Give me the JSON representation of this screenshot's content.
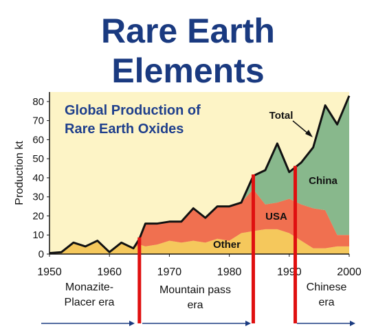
{
  "headline": [
    "Rare Earth",
    "Elements"
  ],
  "chart_data": {
    "type": "area",
    "title": "Global Production of Rare Earth Oxides",
    "title_lines": [
      "Global Production of",
      "Rare Earth Oxides"
    ],
    "ylabel": "Production kt",
    "xlabel": "",
    "xlim": [
      1950,
      2000
    ],
    "ylim": [
      0,
      85
    ],
    "xticks": [
      1950,
      1960,
      1970,
      1980,
      1990,
      2000
    ],
    "yticks": [
      0,
      10,
      20,
      30,
      40,
      50,
      60,
      70,
      80
    ],
    "grid": false,
    "stacked": true,
    "series": [
      {
        "name": "Other",
        "color": "#f5c85c",
        "x": [
          1950,
          1952,
          1954,
          1956,
          1958,
          1960,
          1962,
          1964,
          1965,
          1966,
          1968,
          1970,
          1972,
          1974,
          1976,
          1978,
          1980,
          1982,
          1984,
          1986,
          1988,
          1990,
          1992,
          1994,
          1996,
          1998,
          2000
        ],
        "values": [
          0.5,
          1,
          6,
          4,
          7,
          1,
          6,
          3,
          5,
          4,
          5,
          7,
          6,
          7,
          6,
          8,
          7,
          11,
          12,
          13,
          13,
          11,
          7,
          3,
          3,
          4,
          4
        ]
      },
      {
        "name": "USA",
        "color": "#f07050",
        "x": [
          1950,
          1952,
          1954,
          1956,
          1958,
          1960,
          1962,
          1964,
          1965,
          1966,
          1968,
          1970,
          1972,
          1974,
          1976,
          1978,
          1980,
          1982,
          1984,
          1986,
          1988,
          1990,
          1992,
          1994,
          1996,
          1998,
          2000
        ],
        "values": [
          0,
          0,
          0,
          0,
          0,
          0,
          0,
          0,
          3,
          12,
          11,
          10,
          11,
          17,
          13,
          17,
          18,
          16,
          22,
          13,
          14,
          18,
          19,
          21,
          20,
          6,
          6
        ]
      },
      {
        "name": "China",
        "color": "#88b88c",
        "x": [
          1950,
          1952,
          1954,
          1956,
          1958,
          1960,
          1962,
          1964,
          1965,
          1966,
          1968,
          1970,
          1972,
          1974,
          1976,
          1978,
          1980,
          1982,
          1984,
          1986,
          1988,
          1990,
          1992,
          1994,
          1996,
          1998,
          2000
        ],
        "values": [
          0,
          0,
          0,
          0,
          0,
          0,
          0,
          0,
          0,
          0,
          0,
          0,
          0,
          0,
          0,
          0,
          0,
          0,
          7,
          18,
          31,
          14,
          22,
          32,
          55,
          58,
          73
        ]
      }
    ],
    "total": {
      "name": "Total",
      "x": [
        1950,
        1952,
        1954,
        1956,
        1958,
        1960,
        1962,
        1964,
        1965,
        1966,
        1968,
        1970,
        1972,
        1974,
        1976,
        1978,
        1980,
        1982,
        1984,
        1986,
        1988,
        1990,
        1992,
        1994,
        1996,
        1998,
        2000
      ],
      "values": [
        0.5,
        1,
        6,
        4,
        7,
        1,
        6,
        3,
        8,
        16,
        16,
        17,
        17,
        24,
        19,
        25,
        25,
        27,
        41,
        44,
        58,
        43,
        48,
        56,
        78,
        68,
        83
      ]
    },
    "series_labels": [
      "Total",
      "China",
      "USA",
      "Other"
    ],
    "era_markers": [
      1965,
      1984,
      1991
    ]
  },
  "eras": [
    {
      "lines": [
        "Monazite-",
        "Placer era"
      ]
    },
    {
      "lines": [
        "Mountain pass",
        "era"
      ]
    },
    {
      "lines": [
        "Chinese",
        "era"
      ]
    }
  ]
}
